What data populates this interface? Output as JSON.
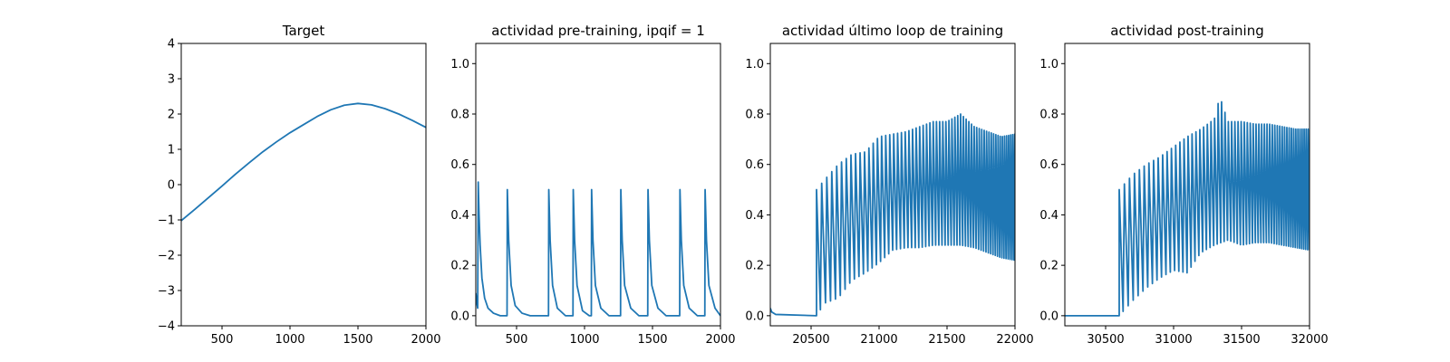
{
  "figure": {
    "series_color": "#1f77b4"
  },
  "chart_data": [
    {
      "type": "line",
      "title": "Target",
      "xlabel": "",
      "ylabel": "",
      "xlim": [
        200,
        2000
      ],
      "ylim": [
        -4,
        4
      ],
      "xticks": [
        500,
        1000,
        1500,
        2000
      ],
      "xtick_labels": [
        "500",
        "1000",
        "1500",
        "2000"
      ],
      "yticks": [
        -4,
        -3,
        -2,
        -1,
        0,
        1,
        2,
        3,
        4
      ],
      "ytick_labels": [
        "−4",
        "−3",
        "−2",
        "−1",
        "0",
        "1",
        "2",
        "3",
        "4"
      ],
      "grid": false,
      "series": [
        {
          "x": [
            200,
            300,
            400,
            500,
            600,
            700,
            800,
            900,
            1000,
            1100,
            1200,
            1300,
            1400,
            1500,
            1600,
            1700,
            1800,
            1900,
            2000
          ],
          "y": [
            -1.02,
            -0.7,
            -0.37,
            -0.04,
            0.3,
            0.62,
            0.93,
            1.21,
            1.47,
            1.7,
            1.93,
            2.12,
            2.25,
            2.3,
            2.26,
            2.15,
            2.0,
            1.82,
            1.62
          ]
        }
      ]
    },
    {
      "type": "line",
      "title": "actividad pre-training, ipqif = 1",
      "xlabel": "",
      "ylabel": "",
      "xlim": [
        200,
        2000
      ],
      "ylim": [
        -0.04,
        1.08
      ],
      "xticks": [
        500,
        1000,
        1500,
        2000
      ],
      "xtick_labels": [
        "500",
        "1000",
        "1500",
        "2000"
      ],
      "yticks": [
        0.0,
        0.2,
        0.4,
        0.6,
        0.8,
        1.0
      ],
      "ytick_labels": [
        "0.0",
        "0.2",
        "0.4",
        "0.6",
        "0.8",
        "1.0"
      ],
      "grid": false,
      "series": [
        {
          "x": [
            200,
            208,
            214,
            218,
            224,
            232,
            245,
            265,
            290,
            330,
            380,
            430,
            432,
            442,
            460,
            490,
            540,
            600,
            680,
            735,
            737,
            747,
            765,
            800,
            860,
            915,
            917,
            927,
            945,
            985,
            1035,
            1050,
            1052,
            1062,
            1080,
            1120,
            1180,
            1250,
            1265,
            1267,
            1277,
            1295,
            1340,
            1400,
            1450,
            1465,
            1467,
            1477,
            1495,
            1540,
            1600,
            1660,
            1690,
            1700,
            1702,
            1712,
            1730,
            1770,
            1830,
            1870,
            1885,
            1887,
            1897,
            1915,
            1960,
            2000
          ],
          "y": [
            0.09,
            0.05,
            0.03,
            0.53,
            0.4,
            0.28,
            0.15,
            0.07,
            0.03,
            0.01,
            0.0,
            0.0,
            0.5,
            0.3,
            0.12,
            0.04,
            0.01,
            0.0,
            0.0,
            0.0,
            0.5,
            0.3,
            0.12,
            0.03,
            0.0,
            0.0,
            0.5,
            0.3,
            0.12,
            0.02,
            0.0,
            0.0,
            0.5,
            0.3,
            0.12,
            0.03,
            0.0,
            0.0,
            0.0,
            0.5,
            0.3,
            0.12,
            0.03,
            0.0,
            0.0,
            0.0,
            0.5,
            0.3,
            0.12,
            0.03,
            0.0,
            0.0,
            0.0,
            0.0,
            0.5,
            0.3,
            0.12,
            0.03,
            0.0,
            0.0,
            0.0,
            0.5,
            0.3,
            0.12,
            0.03,
            0.0
          ]
        }
      ]
    },
    {
      "type": "line",
      "title": "actividad último loop de training",
      "xlabel": "",
      "ylabel": "",
      "xlim": [
        20200,
        22000
      ],
      "ylim": [
        -0.04,
        1.08
      ],
      "xticks": [
        20500,
        21000,
        21500,
        22000
      ],
      "xtick_labels": [
        "20500",
        "21000",
        "21500",
        "22000"
      ],
      "yticks": [
        0.0,
        0.2,
        0.4,
        0.6,
        0.8,
        1.0
      ],
      "ytick_labels": [
        "0.0",
        "0.2",
        "0.4",
        "0.6",
        "0.8",
        "1.0"
      ],
      "grid": false,
      "oscillation": {
        "start": 20540,
        "end": 22000,
        "period_start": 38,
        "period_end": 14,
        "peak": [
          [
            20540,
            0.5
          ],
          [
            20600,
            0.54
          ],
          [
            20700,
            0.6
          ],
          [
            20800,
            0.64
          ],
          [
            20900,
            0.65
          ],
          [
            21000,
            0.71
          ],
          [
            21100,
            0.72
          ],
          [
            21200,
            0.73
          ],
          [
            21300,
            0.75
          ],
          [
            21400,
            0.77
          ],
          [
            21500,
            0.77
          ],
          [
            21600,
            0.8
          ],
          [
            21700,
            0.75
          ],
          [
            21800,
            0.73
          ],
          [
            21900,
            0.71
          ],
          [
            22000,
            0.72
          ]
        ],
        "trough": [
          [
            20540,
            0.0
          ],
          [
            20600,
            0.05
          ],
          [
            20700,
            0.07
          ],
          [
            20800,
            0.14
          ],
          [
            20900,
            0.17
          ],
          [
            21000,
            0.21
          ],
          [
            21100,
            0.26
          ],
          [
            21200,
            0.27
          ],
          [
            21300,
            0.27
          ],
          [
            21400,
            0.28
          ],
          [
            21500,
            0.28
          ],
          [
            21600,
            0.28
          ],
          [
            21700,
            0.27
          ],
          [
            21800,
            0.25
          ],
          [
            21900,
            0.23
          ],
          [
            22000,
            0.22
          ]
        ],
        "baseline": [
          [
            20200,
            0.03
          ],
          [
            20210,
            0.015
          ],
          [
            20240,
            0.005
          ],
          [
            20540,
            0.0
          ]
        ]
      }
    },
    {
      "type": "line",
      "title": "actividad post-training",
      "xlabel": "",
      "ylabel": "",
      "xlim": [
        30200,
        32000
      ],
      "ylim": [
        -0.04,
        1.08
      ],
      "xticks": [
        30500,
        31000,
        31500,
        32000
      ],
      "xtick_labels": [
        "30500",
        "31000",
        "31500",
        "32000"
      ],
      "yticks": [
        0.0,
        0.2,
        0.4,
        0.6,
        0.8,
        1.0
      ],
      "ytick_labels": [
        "0.0",
        "0.2",
        "0.4",
        "0.6",
        "0.8",
        "1.0"
      ],
      "grid": false,
      "oscillation": {
        "start": 30600,
        "end": 32000,
        "period_start": 38,
        "period_end": 14,
        "peak": [
          [
            30600,
            0.5
          ],
          [
            30700,
            0.56
          ],
          [
            30800,
            0.6
          ],
          [
            30900,
            0.63
          ],
          [
            31000,
            0.67
          ],
          [
            31100,
            0.71
          ],
          [
            31200,
            0.74
          ],
          [
            31300,
            0.78
          ],
          [
            31340,
            0.87
          ],
          [
            31400,
            0.77
          ],
          [
            31500,
            0.77
          ],
          [
            31600,
            0.76
          ],
          [
            31700,
            0.76
          ],
          [
            31800,
            0.75
          ],
          [
            31900,
            0.74
          ],
          [
            32000,
            0.74
          ]
        ],
        "trough": [
          [
            30600,
            0.0
          ],
          [
            30700,
            0.06
          ],
          [
            30800,
            0.11
          ],
          [
            30900,
            0.15
          ],
          [
            31000,
            0.18
          ],
          [
            31100,
            0.17
          ],
          [
            31200,
            0.25
          ],
          [
            31300,
            0.28
          ],
          [
            31400,
            0.3
          ],
          [
            31500,
            0.28
          ],
          [
            31600,
            0.29
          ],
          [
            31700,
            0.29
          ],
          [
            31800,
            0.28
          ],
          [
            31900,
            0.27
          ],
          [
            32000,
            0.26
          ]
        ],
        "baseline": [
          [
            30200,
            0.0
          ],
          [
            30600,
            0.0
          ]
        ]
      }
    }
  ]
}
